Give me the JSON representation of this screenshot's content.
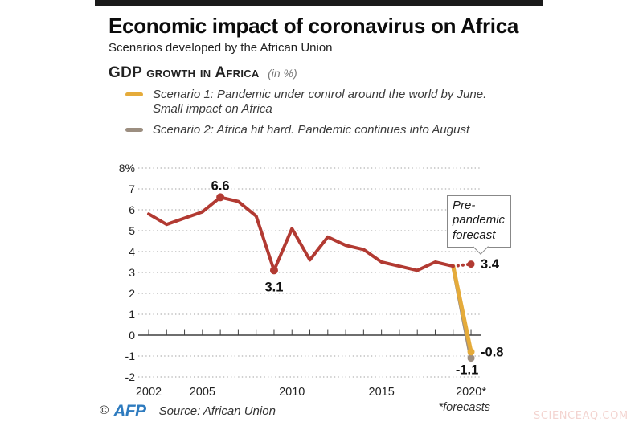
{
  "page": {
    "watermark": "SCIENCEAQ.COM"
  },
  "header": {
    "title": "Economic impact of coronavirus on Africa",
    "subtitle": "Scenarios developed by the African Union"
  },
  "chart_heading": {
    "title": "GDP growth in Africa",
    "unit": "(in %)"
  },
  "legend": {
    "s1": {
      "color": "#e5ab3a",
      "line1": "Scenario 1: Pandemic under control around the world by June.",
      "line2": "Small impact on Africa"
    },
    "s2": {
      "color": "#9c8e80",
      "line1": "Scenario 2: Africa hit hard. Pandemic continues into August"
    }
  },
  "annotation": {
    "text": "Pre-pandemic forecast"
  },
  "chart_data": {
    "type": "line",
    "title": "GDP growth in Africa",
    "unit": "in %",
    "ylim": [
      -2,
      8
    ],
    "xlim": [
      2002,
      2020
    ],
    "grid": "dotted horizontal lines, solid zero axis with yearly tick marks",
    "yticks": [
      {
        "v": 8,
        "label": "8%"
      },
      {
        "v": 7,
        "label": "7"
      },
      {
        "v": 6,
        "label": "6"
      },
      {
        "v": 5,
        "label": "5"
      },
      {
        "v": 4,
        "label": "4"
      },
      {
        "v": 3,
        "label": "3"
      },
      {
        "v": 2,
        "label": "2"
      },
      {
        "v": 1,
        "label": "1"
      },
      {
        "v": 0,
        "label": "0"
      },
      {
        "v": -1,
        "label": "-1"
      },
      {
        "v": -2,
        "label": "-2"
      }
    ],
    "xticks": {
      "from": 2002,
      "to": 2020
    },
    "xtick_labels": [
      {
        "year": 2002,
        "label": "2002"
      },
      {
        "year": 2005,
        "label": "2005"
      },
      {
        "year": 2010,
        "label": "2010"
      },
      {
        "year": 2015,
        "label": "2015"
      },
      {
        "year": 2020,
        "label": "2020*"
      }
    ],
    "forecasts_note": "*forecasts",
    "series": [
      {
        "name": "Scenario 2: Africa hit hard. Pandemic continues into August",
        "color": "#9c8e80",
        "style": "solid",
        "width": 5,
        "x": [
          2019,
          2020
        ],
        "values": [
          3.3,
          -1.1
        ]
      },
      {
        "name": "Scenario 1: Pandemic under control around the world by June. Small impact on Africa",
        "color": "#e5ab3a",
        "style": "solid",
        "width": 5,
        "x": [
          2019,
          2020
        ],
        "values": [
          3.3,
          -0.8
        ]
      },
      {
        "name": "Pre-pandemic forecast",
        "color": "#b23a32",
        "style": "dotted",
        "width": 4,
        "x": [
          2019,
          2020
        ],
        "values": [
          3.3,
          3.4
        ]
      },
      {
        "name": "GDP growth in Africa (actual)",
        "color": "#b23a32",
        "style": "solid",
        "width": 4,
        "x": [
          2002,
          2003,
          2004,
          2005,
          2006,
          2007,
          2008,
          2009,
          2010,
          2011,
          2012,
          2013,
          2014,
          2015,
          2016,
          2017,
          2018,
          2019
        ],
        "values": [
          5.8,
          5.3,
          5.6,
          5.9,
          6.6,
          6.4,
          5.7,
          3.1,
          5.1,
          3.6,
          4.7,
          4.3,
          4.1,
          3.5,
          3.3,
          3.1,
          3.5,
          3.3
        ]
      }
    ],
    "markers": [
      {
        "year": 2006,
        "value": 6.6,
        "color": "#b23a32",
        "r": 5
      },
      {
        "year": 2009,
        "value": 3.1,
        "color": "#b23a32",
        "r": 5
      },
      {
        "year": 2020,
        "value": 3.4,
        "color": "#b23a32",
        "r": 4.5
      },
      {
        "year": 2020,
        "value": -1.1,
        "color": "#9c8e80",
        "r": 4.5
      },
      {
        "year": 2020,
        "value": -0.8,
        "color": "#e5ab3a",
        "r": 4.5
      }
    ],
    "point_labels": [
      {
        "text": "6.6",
        "year": 2006,
        "value": 6.6,
        "placement": "above"
      },
      {
        "text": "3.1",
        "year": 2009,
        "value": 3.1,
        "placement": "below"
      },
      {
        "text": "3.4",
        "year": 2020,
        "value": 3.4,
        "placement": "right"
      },
      {
        "text": "-0.8",
        "year": 2020,
        "value": -0.8,
        "placement": "right"
      },
      {
        "text": "-1.1",
        "year": 2020,
        "value": -1.1,
        "placement": "below-left"
      }
    ]
  },
  "footer": {
    "copyright": "©",
    "logo": "AFP",
    "source": "Source: African Union"
  }
}
